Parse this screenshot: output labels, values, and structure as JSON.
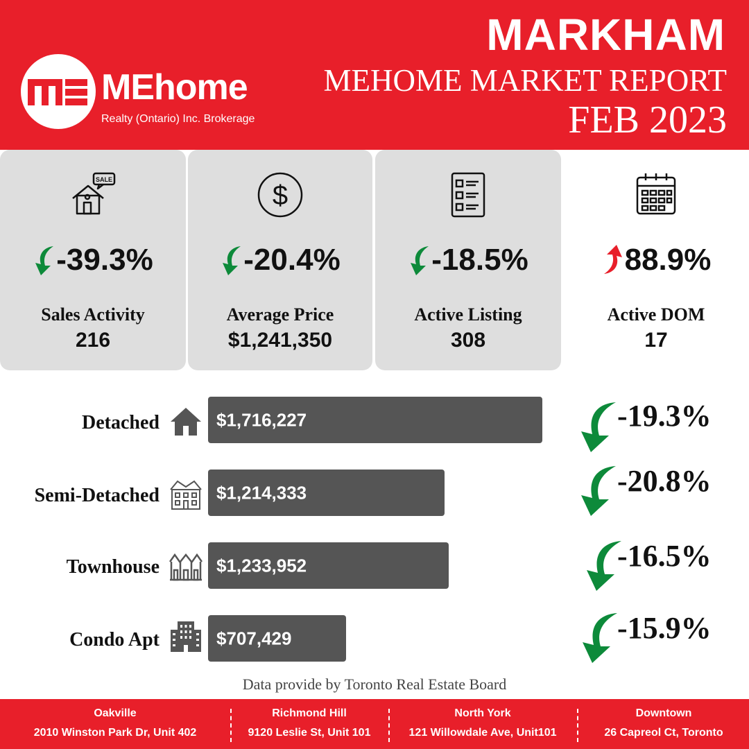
{
  "header": {
    "logo_text": "ME",
    "brand_name": "MEhome",
    "brand_sub": "Realty (Ontario) Inc. Brokerage",
    "city": "MARKHAM",
    "report_title": "MEHOME MARKET REPORT",
    "month": "FEB 2023",
    "background_color": "#e81f2a"
  },
  "stats": [
    {
      "label": "Sales Activity",
      "value": "216",
      "change": "-39.3%",
      "direction": "down",
      "icon": "house-sale-icon"
    },
    {
      "label": "Average Price",
      "value": "$1,241,350",
      "change": "-20.4%",
      "direction": "down",
      "icon": "dollar-icon"
    },
    {
      "label": "Active Listing",
      "value": "308",
      "change": "-18.5%",
      "direction": "down",
      "icon": "checklist-icon"
    },
    {
      "label": "Active DOM",
      "value": "17",
      "change": "88.9%",
      "direction": "up",
      "icon": "calendar-icon"
    }
  ],
  "property_types": [
    {
      "label": "Detached",
      "price": "$1,716,227",
      "price_value": 1716227,
      "change": "-19.3%",
      "icon": "house-icon"
    },
    {
      "label": "Semi-Detached",
      "price": "$1,214,333",
      "price_value": 1214333,
      "change": "-20.8%",
      "icon": "semi-detached-icon"
    },
    {
      "label": "Townhouse",
      "price": "$1,233,952",
      "price_value": 1233952,
      "change": "-16.5%",
      "icon": "townhouse-icon"
    },
    {
      "label": "Condo Apt",
      "price": "$707,429",
      "price_value": 707429,
      "change": "-15.9%",
      "icon": "condo-building-icon"
    }
  ],
  "source": "Data provide by Toronto Real Estate Board",
  "offices": [
    {
      "name": "Oakville",
      "address": "2010 Winston Park Dr, Unit 402"
    },
    {
      "name": "Richmond Hill",
      "address": "9120 Leslie St, Unit 101"
    },
    {
      "name": "North York",
      "address": "121 Willowdale Ave, Unit101"
    },
    {
      "name": "Downtown",
      "address": "26 Capreol Ct, Toronto"
    }
  ],
  "colors": {
    "accent": "#e81f2a",
    "down": "#0d8a3a",
    "up": "#e81f2a",
    "bar": "#555555",
    "card": "#dedede"
  }
}
